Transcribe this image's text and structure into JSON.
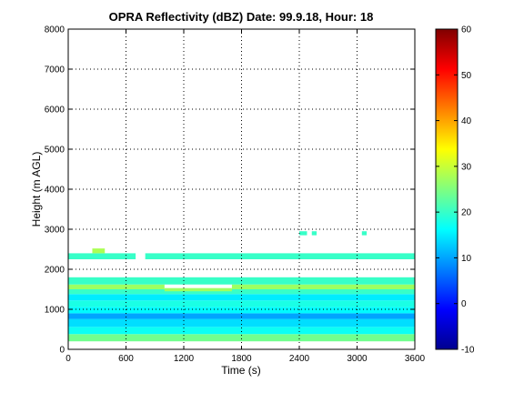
{
  "chart_data": {
    "type": "heatmap",
    "title": "OPRA Reflectivity (dBZ)  Date: 99.9.18, Hour: 18",
    "xlabel": "Time (s)",
    "ylabel": "Height (m AGL)",
    "xlim": [
      0,
      3600
    ],
    "ylim": [
      0,
      8000
    ],
    "x_ticks": [
      0,
      600,
      1200,
      1800,
      2400,
      3000,
      3600
    ],
    "y_ticks": [
      0,
      1000,
      2000,
      3000,
      4000,
      5000,
      6000,
      7000,
      8000
    ],
    "grid": true,
    "colorbar": {
      "range": [
        -10,
        60
      ],
      "ticks": [
        -10,
        0,
        10,
        20,
        30,
        40,
        50,
        60
      ],
      "colormap": "jet"
    },
    "layers": [
      {
        "t": [
          0,
          3600
        ],
        "z": [
          200,
          380
        ],
        "dbz": 24
      },
      {
        "t": [
          0,
          3600
        ],
        "z": [
          380,
          560
        ],
        "dbz": 17
      },
      {
        "t": [
          0,
          3600
        ],
        "z": [
          560,
          760
        ],
        "dbz": 14
      },
      {
        "t": [
          0,
          3600
        ],
        "z": [
          760,
          900
        ],
        "dbz": 10
      },
      {
        "t": [
          0,
          3600
        ],
        "z": [
          900,
          1060
        ],
        "dbz": 16
      },
      {
        "t": [
          0,
          3600
        ],
        "z": [
          1060,
          1220
        ],
        "dbz": 18
      },
      {
        "t": [
          0,
          3600
        ],
        "z": [
          1220,
          1380
        ],
        "dbz": 15
      },
      {
        "t": [
          0,
          3600
        ],
        "z": [
          1380,
          1500
        ],
        "dbz": 20
      },
      {
        "t": [
          0,
          1000
        ],
        "z": [
          1500,
          1620
        ],
        "dbz": 27
      },
      {
        "t": [
          1000,
          1700
        ],
        "z": [
          1450,
          1530
        ],
        "dbz": 27
      },
      {
        "t": [
          1700,
          3600
        ],
        "z": [
          1500,
          1620
        ],
        "dbz": 27
      },
      {
        "t": [
          0,
          3600
        ],
        "z": [
          1620,
          1800
        ],
        "dbz": 20
      },
      {
        "t": [
          0,
          700
        ],
        "z": [
          2250,
          2400
        ],
        "dbz": 20
      },
      {
        "t": [
          250,
          380
        ],
        "z": [
          2400,
          2520
        ],
        "dbz": 28
      },
      {
        "t": [
          800,
          3600
        ],
        "z": [
          2250,
          2400
        ],
        "dbz": 20
      },
      {
        "t": [
          2400,
          2480
        ],
        "z": [
          2850,
          2950
        ],
        "dbz": 20
      },
      {
        "t": [
          2530,
          2580
        ],
        "z": [
          2850,
          2950
        ],
        "dbz": 20
      },
      {
        "t": [
          3050,
          3100
        ],
        "z": [
          2850,
          2950
        ],
        "dbz": 20
      }
    ]
  }
}
